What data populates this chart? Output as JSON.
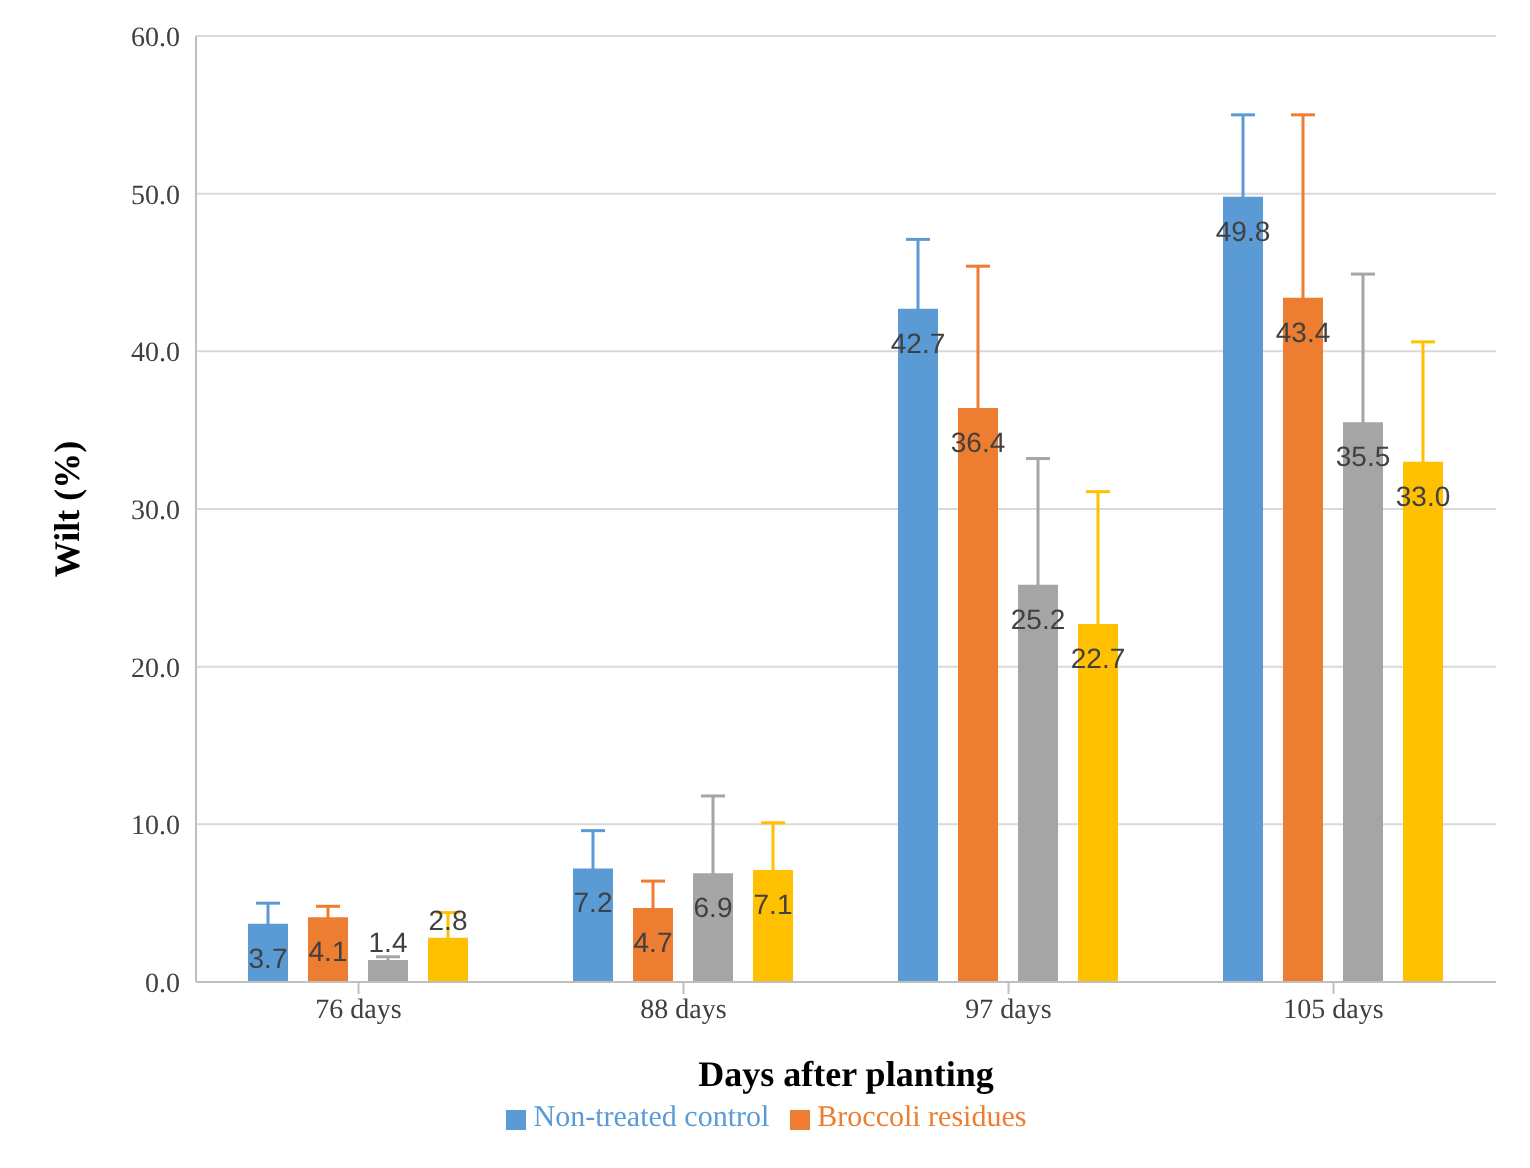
{
  "chart_data": {
    "type": "bar",
    "xlabel": "Days after planting",
    "ylabel": "Wilt (%)",
    "categories": [
      "76 days",
      "88 days",
      "97 days",
      "105 days"
    ],
    "series": [
      {
        "name": "Non-treated control",
        "color": "#5b9bd5",
        "values": [
          3.7,
          7.2,
          42.7,
          49.8
        ],
        "errors": [
          1.3,
          2.4,
          4.4,
          5.2
        ],
        "value_labels": [
          "3.7",
          "7.2",
          "42.7",
          "49.8"
        ]
      },
      {
        "name": "Broccoli residues",
        "color": "#ed7d31",
        "values": [
          4.1,
          4.7,
          36.4,
          43.4
        ],
        "errors": [
          0.7,
          1.7,
          9.0,
          11.6
        ],
        "value_labels": [
          "4.1",
          "4.7",
          "36.4",
          "43.4"
        ]
      },
      {
        "color": "#a5a5a5",
        "values": [
          1.4,
          6.9,
          25.2,
          35.5
        ],
        "errors": [
          0.2,
          4.9,
          8.0,
          9.4
        ],
        "value_labels": [
          "1.4",
          "6.9",
          "25.2",
          "35.5"
        ]
      },
      {
        "color": "#ffc000",
        "values": [
          2.8,
          7.1,
          22.7,
          33.0
        ],
        "errors": [
          1.6,
          3.0,
          8.4,
          7.6
        ],
        "value_labels": [
          "2.8",
          "7.1",
          "22.7",
          "33.0"
        ]
      }
    ],
    "ylim": [
      0,
      60
    ],
    "yticks": [
      {
        "value": 0,
        "label": "0.0"
      },
      {
        "value": 10,
        "label": "10.0"
      },
      {
        "value": 20,
        "label": "20.0"
      },
      {
        "value": 30,
        "label": "30.0"
      },
      {
        "value": 40,
        "label": "40.0"
      },
      {
        "value": 50,
        "label": "50.0"
      },
      {
        "value": 60,
        "label": "60.0"
      }
    ],
    "grid": "y",
    "legend": "bottom"
  }
}
